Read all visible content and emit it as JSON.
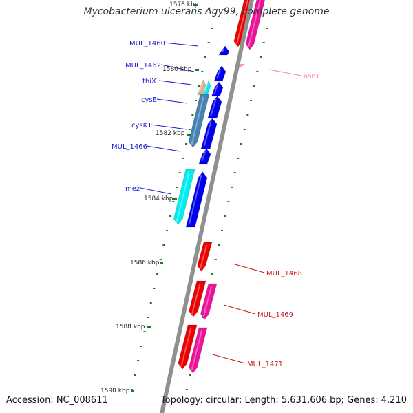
{
  "title": "Mycobacterium ulcerans Agy99, complete genome",
  "footer": {
    "accession": "Accession: NC_008611",
    "topology": "Topology: circular; Length: 5,631,606 bp; Genes: 4,210"
  },
  "colors": {
    "backbone": "#909090",
    "tick": "#1a7a1a",
    "blue_label": "#1a1acc",
    "red_label": "#cc1a1a",
    "pink_label": "#ee88aa",
    "cds_blue": "#0000ee",
    "cds_red": "#ee0000",
    "cds_magenta": "#ee1199",
    "cds_cyan": "#00eeee",
    "cds_steel": "#4682b4",
    "cds_tan": "#d2b48c",
    "trna_pink": "#ff99bb"
  },
  "scale_labels": [
    {
      "kbp": 1578,
      "text": "1578 kbp"
    },
    {
      "kbp": 1580,
      "text": "1580 kbp"
    },
    {
      "kbp": 1582,
      "text": "1582 kbp"
    },
    {
      "kbp": 1584,
      "text": "1584 kbp"
    },
    {
      "kbp": 1586,
      "text": "1586 kbp"
    },
    {
      "kbp": 1588,
      "text": "1588 kbp"
    },
    {
      "kbp": 1590,
      "text": "1590 kbp"
    }
  ],
  "gene_labels": [
    {
      "name": "MUL_1460",
      "side": "left",
      "color": "blue_label"
    },
    {
      "name": "MUL_1462",
      "side": "left",
      "color": "blue_label"
    },
    {
      "name": "thiX",
      "side": "left",
      "color": "blue_label"
    },
    {
      "name": "cysE",
      "side": "left",
      "color": "blue_label"
    },
    {
      "name": "cysK1",
      "side": "left",
      "color": "blue_label"
    },
    {
      "name": "MUL_1466",
      "side": "left",
      "color": "blue_label"
    },
    {
      "name": "mez",
      "side": "left",
      "color": "blue_label"
    },
    {
      "name": "asnT",
      "side": "right",
      "color": "pink_label"
    },
    {
      "name": "MUL_1468",
      "side": "right",
      "color": "red_label"
    },
    {
      "name": "MUL_1469",
      "side": "right",
      "color": "red_label"
    },
    {
      "name": "MUL_1471",
      "side": "right",
      "color": "red_label"
    }
  ]
}
